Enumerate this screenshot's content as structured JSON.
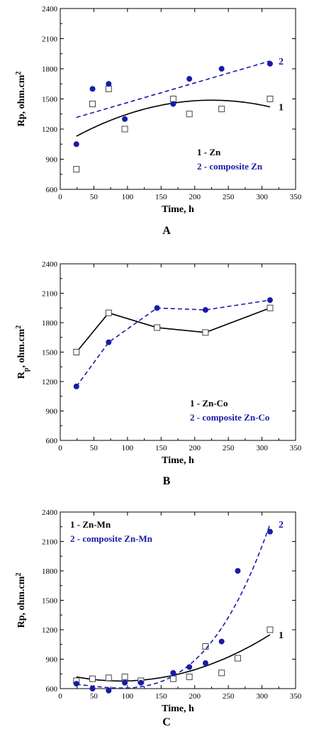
{
  "colors": {
    "series1": "#000000",
    "series2": "#1a1aa8"
  },
  "chart_data": [
    {
      "type": "scatter",
      "panel_label": "A",
      "xlabel": "Time, h",
      "ylabel": "Rp, ohm.cm",
      "ylabel_sup": "2",
      "xlim": [
        0,
        350
      ],
      "ylim": [
        600,
        2400
      ],
      "xticks": [
        0,
        50,
        100,
        150,
        200,
        250,
        300,
        350
      ],
      "yticks": [
        600,
        900,
        1200,
        1500,
        1800,
        2100,
        2400
      ],
      "grid": false,
      "legend_position": "bottom-right",
      "legend": [
        "1 - Zn",
        "2 - composite Zn"
      ],
      "series": [
        {
          "name": "1 - Zn",
          "curve_label": "1",
          "marker": "open-square",
          "line": "solid",
          "fit": "poly2",
          "x": [
            24,
            48,
            72,
            96,
            168,
            192,
            240,
            312
          ],
          "y": [
            800,
            1450,
            1600,
            1200,
            1500,
            1350,
            1400,
            1500
          ]
        },
        {
          "name": "2 - composite Zn",
          "curve_label": "2",
          "marker": "filled-circle",
          "line": "dashed",
          "fit": "linear",
          "x": [
            24,
            48,
            72,
            96,
            168,
            192,
            240,
            312
          ],
          "y": [
            1050,
            1600,
            1650,
            1300,
            1450,
            1700,
            1800,
            1850
          ]
        }
      ]
    },
    {
      "type": "line",
      "panel_label": "B",
      "xlabel": "Time, h",
      "ylabel": "R",
      "ylabel_sub": "p",
      "ylabel_rest": ", ohm.cm",
      "ylabel_sup": "2",
      "xlim": [
        0,
        350
      ],
      "ylim": [
        600,
        2400
      ],
      "xticks": [
        0,
        50,
        100,
        150,
        200,
        250,
        300,
        350
      ],
      "yticks": [
        600,
        900,
        1200,
        1500,
        1800,
        2100,
        2400
      ],
      "grid": false,
      "legend_position": "bottom-right",
      "legend": [
        "1 - Zn-Co",
        "2 - composite Zn-Co"
      ],
      "series": [
        {
          "name": "1 - Zn-Co",
          "marker": "open-square",
          "line": "solid",
          "fit": "connect",
          "x": [
            24,
            72,
            144,
            216,
            312
          ],
          "y": [
            1500,
            1900,
            1750,
            1700,
            1950
          ]
        },
        {
          "name": "2 - composite Zn-Co",
          "marker": "filled-circle",
          "line": "dashed",
          "fit": "connect",
          "x": [
            24,
            72,
            144,
            216,
            312
          ],
          "y": [
            1150,
            1600,
            1950,
            1930,
            2030
          ]
        }
      ]
    },
    {
      "type": "scatter",
      "panel_label": "C",
      "xlabel": "Time, h",
      "ylabel": "Rp, ohm.cm",
      "ylabel_sup": "2",
      "xlim": [
        0,
        350
      ],
      "ylim": [
        600,
        2400
      ],
      "xticks": [
        0,
        50,
        100,
        150,
        200,
        250,
        300,
        350
      ],
      "yticks": [
        600,
        900,
        1200,
        1500,
        1800,
        2100,
        2400
      ],
      "grid": false,
      "legend_position": "top-left",
      "legend": [
        "1 - Zn-Mn",
        "2 - composite Zn-Mn"
      ],
      "series": [
        {
          "name": "1 - Zn-Mn",
          "curve_label": "1",
          "marker": "open-square",
          "line": "solid",
          "fit": "poly2",
          "x": [
            24,
            48,
            72,
            96,
            120,
            168,
            192,
            216,
            240,
            264,
            312
          ],
          "y": [
            680,
            700,
            710,
            720,
            680,
            700,
            720,
            1030,
            760,
            910,
            1200
          ]
        },
        {
          "name": "2 - composite Zn-Mn",
          "curve_label": "2",
          "marker": "filled-circle",
          "line": "dashed",
          "fit": "poly3",
          "x": [
            24,
            48,
            72,
            96,
            120,
            168,
            192,
            216,
            240,
            264,
            312
          ],
          "y": [
            650,
            600,
            580,
            660,
            660,
            760,
            820,
            860,
            1080,
            1800,
            2200
          ]
        }
      ]
    }
  ]
}
